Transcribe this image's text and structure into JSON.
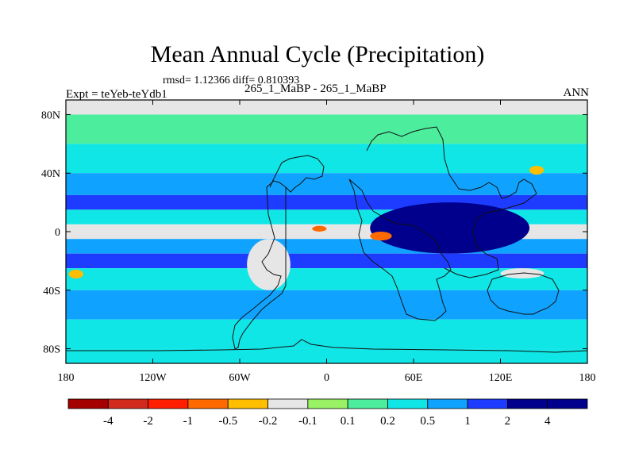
{
  "title": "Mean Annual Cycle (Precipitation)",
  "stats_label": "rmsd= 1.12366 diff= 0.810393",
  "experiment_label": "Expt = teYeb-teYdb1",
  "case_label": "265_1_MaBP - 265_1_MaBP",
  "season_label": "ANN",
  "colors": [
    "#a50000",
    "#d22b1e",
    "#ff1e00",
    "#ff6a00",
    "#ffbe00",
    "#e6e6e6",
    "#99f264",
    "#4ded9e",
    "#10e6e6",
    "#0fa3ff",
    "#1e3cff",
    "#00008c"
  ],
  "chart_data": {
    "type": "heatmap",
    "title": "Mean Annual Cycle (Precipitation)",
    "xlabel": "",
    "ylabel": "",
    "xlim": [
      -180,
      180
    ],
    "ylim": [
      -90,
      90
    ],
    "x_ticks": [
      {
        "value": -180,
        "label": "180"
      },
      {
        "value": -120,
        "label": "120W"
      },
      {
        "value": -60,
        "label": "60W"
      },
      {
        "value": 0,
        "label": "0"
      },
      {
        "value": 60,
        "label": "60E"
      },
      {
        "value": 120,
        "label": "120E"
      },
      {
        "value": 180,
        "label": "180"
      }
    ],
    "y_ticks": [
      {
        "value": 80,
        "label": "80N"
      },
      {
        "value": 40,
        "label": "40N"
      },
      {
        "value": 0,
        "label": "0"
      },
      {
        "value": -40,
        "label": "40S"
      },
      {
        "value": -80,
        "label": "80S"
      }
    ],
    "colorbar_levels": [
      "-4",
      "-2",
      "-1",
      "-0.5",
      "-0.2",
      "-0.1",
      "0.1",
      "0.2",
      "0.5",
      "1",
      "2",
      "4"
    ],
    "precipitation_difference_field": [
      {
        "lat_min": 80,
        "lat_max": 90,
        "value": 0.0
      },
      {
        "lat_min": 60,
        "lat_max": 80,
        "value": 0.15
      },
      {
        "lat_min": 40,
        "lat_max": 60,
        "value": 0.3
      },
      {
        "lat_min": 25,
        "lat_max": 40,
        "value": 0.7
      },
      {
        "lat_min": 15,
        "lat_max": 25,
        "value": 1.3
      },
      {
        "lat_min": 5,
        "lat_max": 15,
        "value": 0.4
      },
      {
        "lat_min": -5,
        "lat_max": 5,
        "value": 0.0
      },
      {
        "lat_min": -15,
        "lat_max": -5,
        "value": 0.6
      },
      {
        "lat_min": -25,
        "lat_max": -15,
        "value": 1.4
      },
      {
        "lat_min": -40,
        "lat_max": -25,
        "value": 0.35
      },
      {
        "lat_min": -60,
        "lat_max": -40,
        "value": 0.7
      },
      {
        "lat_min": -80,
        "lat_max": -60,
        "value": 0.45
      },
      {
        "lat_min": -90,
        "lat_max": -80,
        "value": 0.4
      }
    ],
    "regional_anomalies": [
      {
        "lon_min": 30,
        "lon_max": 140,
        "lat_min": -15,
        "lat_max": 20,
        "value": 2.5
      },
      {
        "lon_min": -55,
        "lon_max": -25,
        "lat_min": -40,
        "lat_max": -5,
        "value": 0.0
      },
      {
        "lon_min": 30,
        "lon_max": 45,
        "lat_min": -6,
        "lat_max": 0,
        "value": -0.7
      },
      {
        "lon_min": -10,
        "lon_max": 0,
        "lat_min": 0,
        "lat_max": 4,
        "value": -0.6
      },
      {
        "lon_min": -178,
        "lon_max": -168,
        "lat_min": -32,
        "lat_max": -26,
        "value": -0.3
      },
      {
        "lon_min": 140,
        "lon_max": 150,
        "lat_min": 39,
        "lat_max": 45,
        "value": -0.4
      },
      {
        "lon_min": 120,
        "lon_max": 150,
        "lat_min": -32,
        "lat_max": -25,
        "value": 0.0
      }
    ]
  }
}
